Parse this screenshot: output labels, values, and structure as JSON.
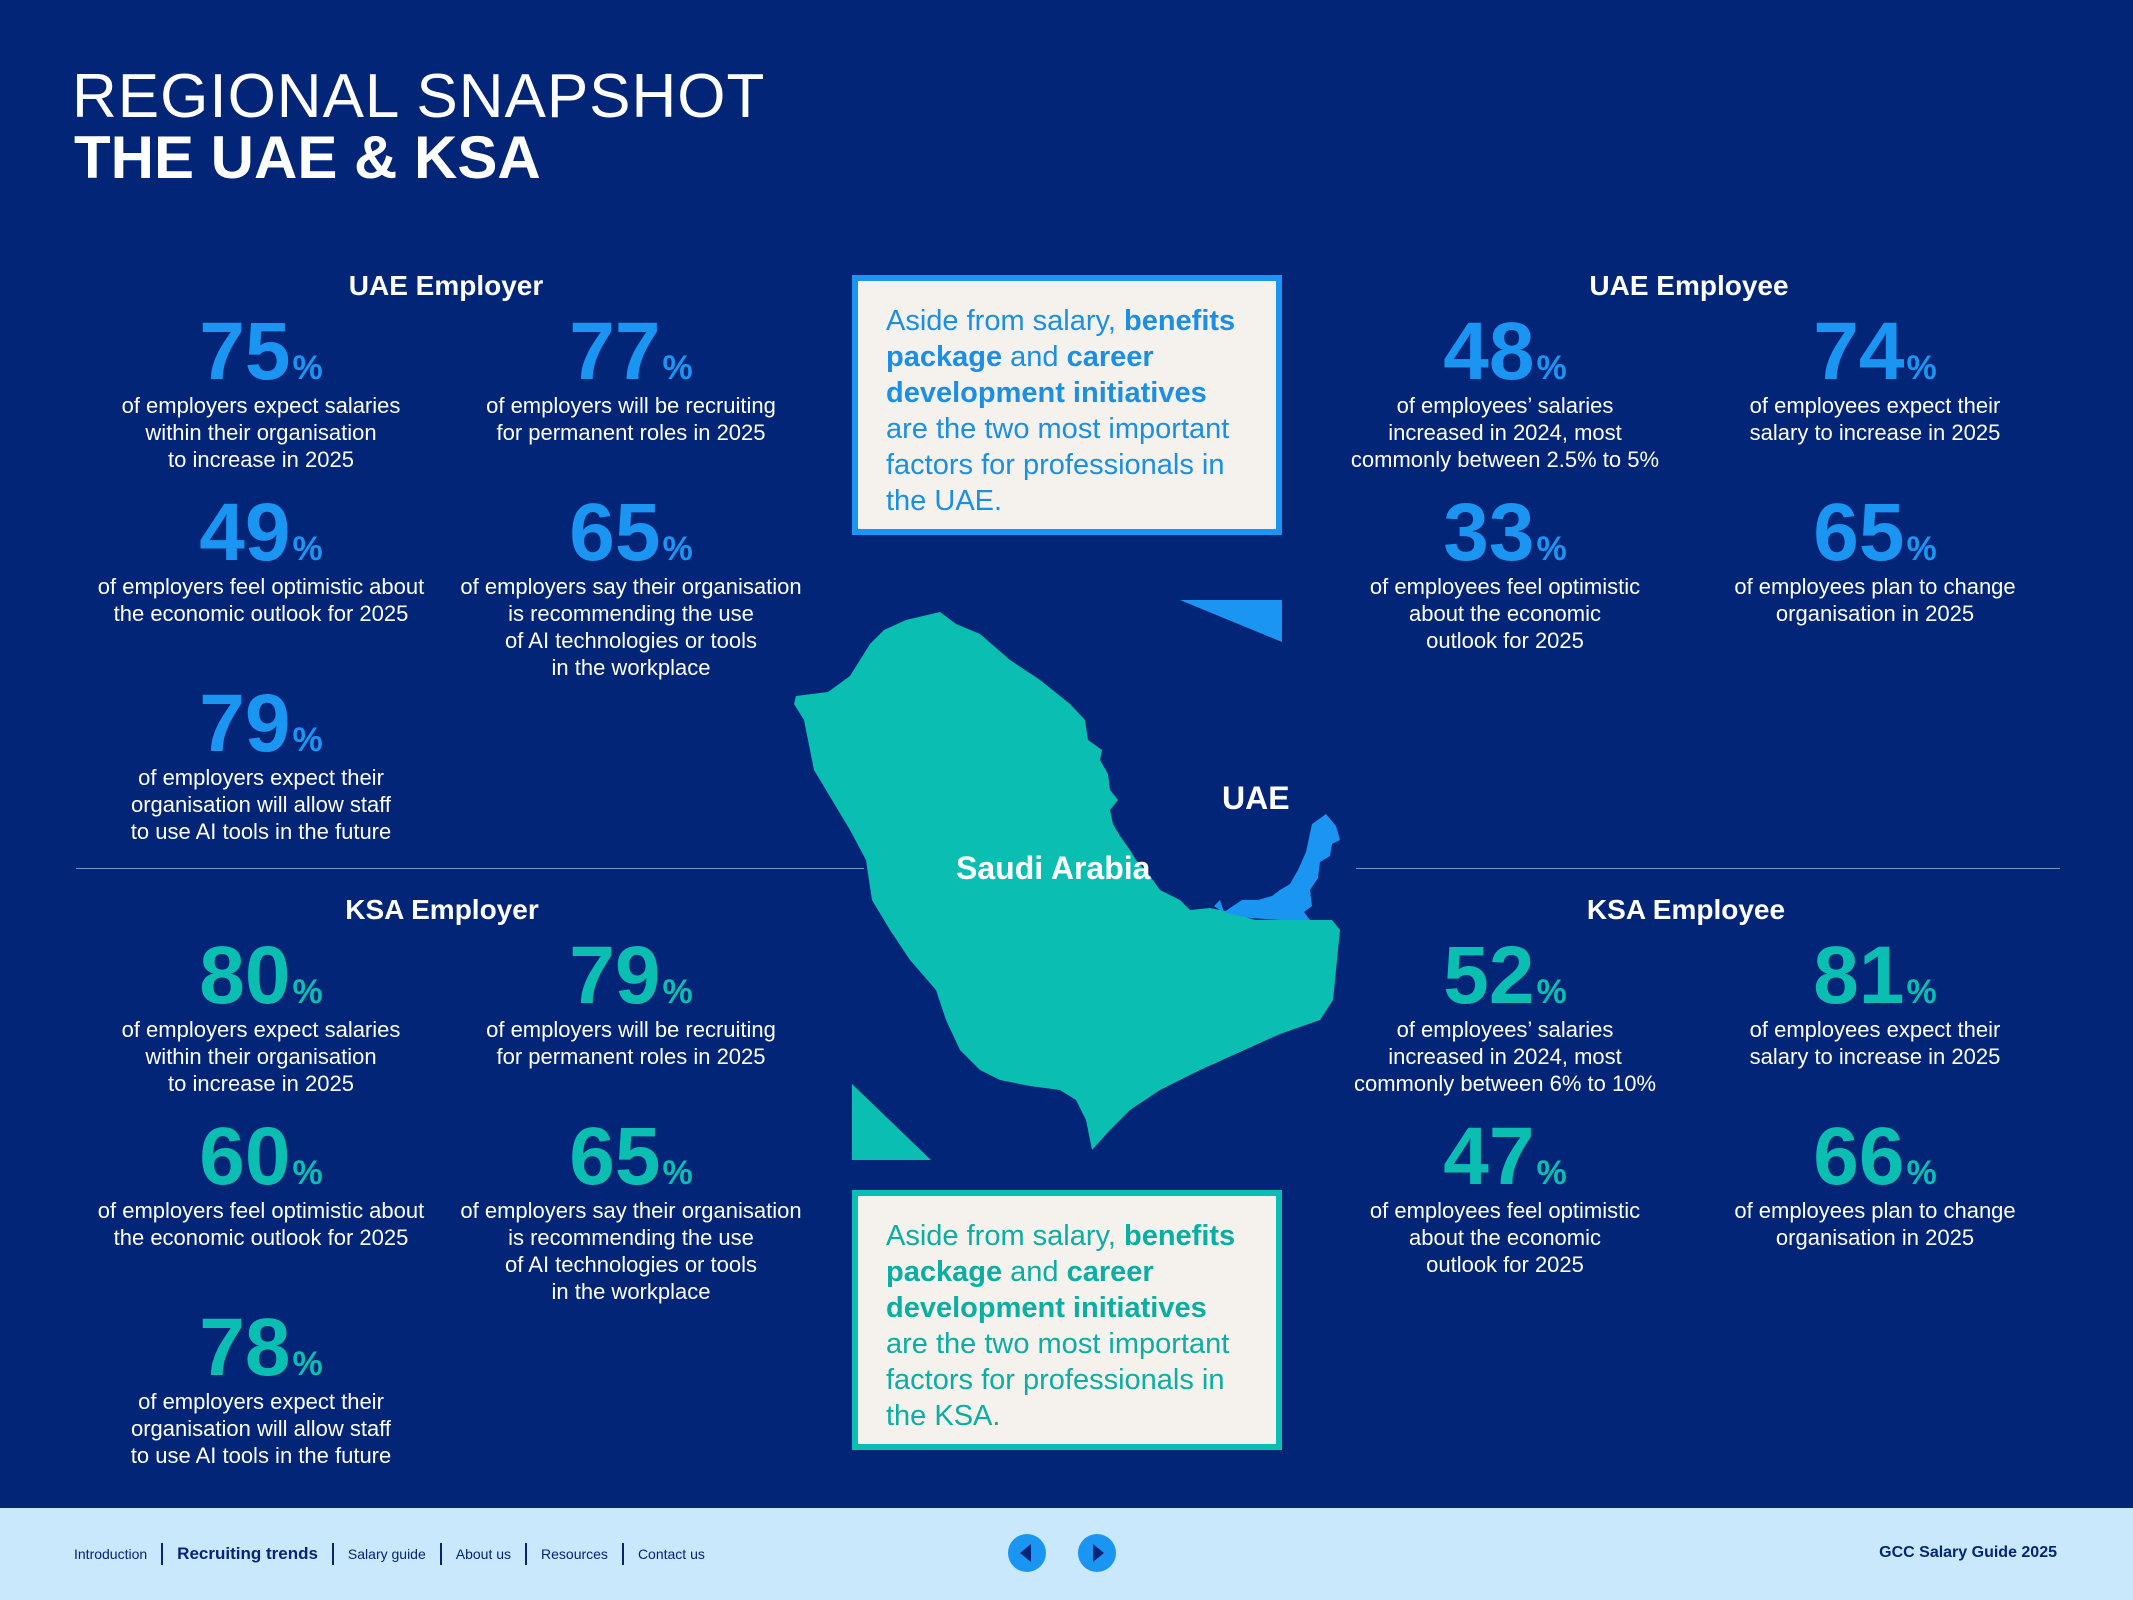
{
  "header": {
    "title_light": "REGIONAL SNAPSHOT",
    "title_bold": "THE UAE & KSA"
  },
  "uae_employer": {
    "heading": "UAE Employer",
    "stats": [
      {
        "value": "75",
        "unit": "%",
        "desc": "of employers expect salaries\nwithin their organisation\nto increase in 2025"
      },
      {
        "value": "77",
        "unit": "%",
        "desc": "of employers will be recruiting\nfor permanent roles in 2025"
      },
      {
        "value": "49",
        "unit": "%",
        "desc": "of employers feel optimistic about\nthe economic outlook for 2025"
      },
      {
        "value": "65",
        "unit": "%",
        "desc": "of employers say their organisation\nis recommending the use\nof AI technologies or tools\nin the workplace"
      },
      {
        "value": "79",
        "unit": "%",
        "desc": "of employers expect their\norganisation will allow staff\nto use AI tools in the future"
      }
    ]
  },
  "uae_employee": {
    "heading": "UAE Employee",
    "stats": [
      {
        "value": "48",
        "unit": "%",
        "desc": "of employees’ salaries\nincreased in 2024, most\ncommonly between 2.5% to 5%"
      },
      {
        "value": "74",
        "unit": "%",
        "desc": "of employees expect their\nsalary to increase in 2025"
      },
      {
        "value": "33",
        "unit": "%",
        "desc": "of employees feel optimistic\nabout the economic\noutlook for 2025"
      },
      {
        "value": "65",
        "unit": "%",
        "desc": "of employees plan to change\norganisation in 2025"
      }
    ]
  },
  "ksa_employer": {
    "heading": "KSA Employer",
    "stats": [
      {
        "value": "80",
        "unit": "%",
        "desc": "of employers expect salaries\nwithin their organisation\nto increase in 2025"
      },
      {
        "value": "79",
        "unit": "%",
        "desc": "of employers will be recruiting\nfor permanent roles in 2025"
      },
      {
        "value": "60",
        "unit": "%",
        "desc": "of employers feel optimistic about\nthe economic outlook for 2025"
      },
      {
        "value": "65",
        "unit": "%",
        "desc": "of employers say their organisation\nis recommending the use\nof AI technologies or tools\nin the workplace"
      },
      {
        "value": "78",
        "unit": "%",
        "desc": "of employers expect their\norganisation will allow staff\nto use AI tools in the future"
      }
    ]
  },
  "ksa_employee": {
    "heading": "KSA Employee",
    "stats": [
      {
        "value": "52",
        "unit": "%",
        "desc": "of employees’ salaries\nincreased in 2024, most\ncommonly between 6% to 10%"
      },
      {
        "value": "81",
        "unit": "%",
        "desc": "of employees expect their\nsalary to increase in 2025"
      },
      {
        "value": "47",
        "unit": "%",
        "desc": "of employees feel optimistic\nabout the economic\noutlook for 2025"
      },
      {
        "value": "66",
        "unit": "%",
        "desc": "of employees plan to change\norganisation in 2025"
      }
    ]
  },
  "callout_uae": {
    "p1": "Aside from salary, ",
    "b1": "benefits package",
    "p2": " and ",
    "b2": "career development initiatives",
    "p3": " are the two most important factors for professionals in the UAE."
  },
  "callout_ksa": {
    "p1": "Aside from salary, ",
    "b1": "benefits package",
    "p2": " and ",
    "b2": "career development initiatives",
    "p3": " are the two most important factors for professionals in the KSA."
  },
  "map": {
    "label_saudi": "Saudi Arabia",
    "label_uae": "UAE",
    "saudi_color": "#0abfb2",
    "uae_color": "#1a95f2"
  },
  "footer": {
    "nav": [
      "Introduction",
      "Recruiting trends",
      "Salary guide",
      "About us",
      "Resources",
      "Contact us"
    ],
    "active_index": 1,
    "prev_icon": "arrow-left-icon",
    "next_icon": "arrow-right-icon",
    "guide_title": "GCC Salary Guide 2025"
  }
}
